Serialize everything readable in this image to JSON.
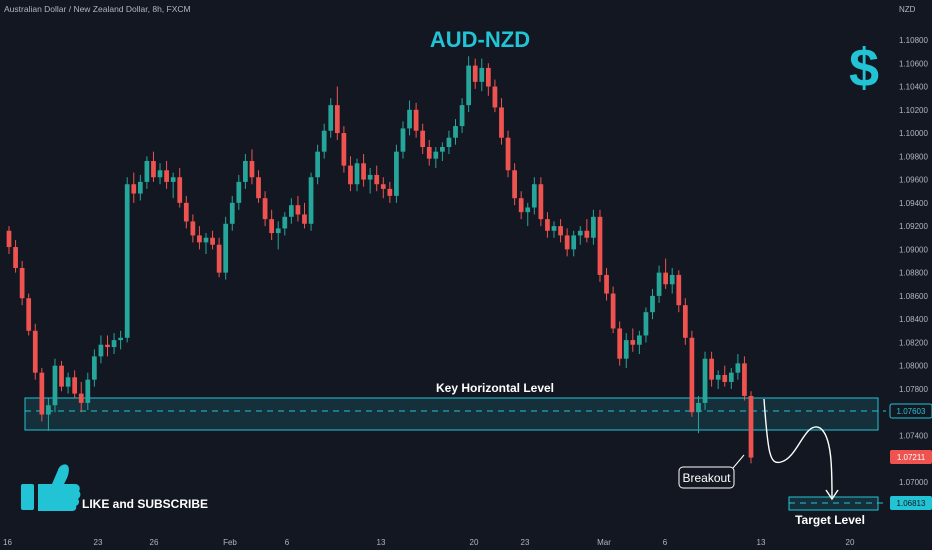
{
  "header": {
    "symbol_description": "Australian Dollar / New Zealand Dollar, 8h, FXCM",
    "currency": "NZD"
  },
  "colors": {
    "background": "#131722",
    "bullish": "#26a69a",
    "bearish": "#ef5350",
    "accent": "#22c3d4",
    "axis_text": "#b2b5be",
    "annotation": "#ffffff"
  },
  "icons": {
    "currency_icon": "dollar-sign-icon",
    "like_icon": "thumbs-up-icon"
  },
  "chart_data": {
    "type": "candlestick",
    "title": "AUD-NZD",
    "ylim": [
      1.066,
      1.082
    ],
    "y_ticks": [
      "1.10800",
      "1.10600",
      "1.10400",
      "1.10200",
      "1.10000",
      "1.09800",
      "1.09600",
      "1.09400",
      "1.09200",
      "1.09000",
      "1.08800",
      "1.08600",
      "1.08400",
      "1.08200",
      "1.08000",
      "1.07800",
      "1.07400",
      "1.07000"
    ],
    "x_ticks": [
      "16",
      "23",
      "26",
      "Feb",
      "6",
      "13",
      "20",
      "23",
      "Mar",
      "6",
      "13",
      "20"
    ],
    "price_labels": [
      {
        "value": "1.07603",
        "color": "accent"
      },
      {
        "value": "1.07211",
        "color": "bearish"
      },
      {
        "value": "1.06813",
        "color": "accent"
      }
    ],
    "candles": [
      {
        "o": 1.0916,
        "h": 1.092,
        "l": 1.0896,
        "c": 1.0902
      },
      {
        "o": 1.0902,
        "h": 1.0908,
        "l": 1.088,
        "c": 1.0884
      },
      {
        "o": 1.0884,
        "h": 1.089,
        "l": 1.0852,
        "c": 1.0858
      },
      {
        "o": 1.0858,
        "h": 1.0862,
        "l": 1.0826,
        "c": 1.083
      },
      {
        "o": 1.083,
        "h": 1.0836,
        "l": 1.0788,
        "c": 1.0794
      },
      {
        "o": 1.0794,
        "h": 1.0798,
        "l": 1.0752,
        "c": 1.0758
      },
      {
        "o": 1.0758,
        "h": 1.0772,
        "l": 1.0744,
        "c": 1.0766
      },
      {
        "o": 1.0766,
        "h": 1.0806,
        "l": 1.076,
        "c": 1.08
      },
      {
        "o": 1.08,
        "h": 1.0804,
        "l": 1.0778,
        "c": 1.0782
      },
      {
        "o": 1.0782,
        "h": 1.0794,
        "l": 1.0776,
        "c": 1.079
      },
      {
        "o": 1.079,
        "h": 1.0796,
        "l": 1.0772,
        "c": 1.0776
      },
      {
        "o": 1.0776,
        "h": 1.0786,
        "l": 1.076,
        "c": 1.0768
      },
      {
        "o": 1.0768,
        "h": 1.0794,
        "l": 1.0762,
        "c": 1.0788
      },
      {
        "o": 1.0788,
        "h": 1.0814,
        "l": 1.0782,
        "c": 1.0808
      },
      {
        "o": 1.0808,
        "h": 1.0826,
        "l": 1.0802,
        "c": 1.0818
      },
      {
        "o": 1.0818,
        "h": 1.0826,
        "l": 1.0808,
        "c": 1.0816
      },
      {
        "o": 1.0816,
        "h": 1.0828,
        "l": 1.081,
        "c": 1.0822
      },
      {
        "o": 1.0822,
        "h": 1.083,
        "l": 1.0814,
        "c": 1.0824
      },
      {
        "o": 1.0824,
        "h": 1.0962,
        "l": 1.082,
        "c": 1.0956
      },
      {
        "o": 1.0956,
        "h": 1.0966,
        "l": 1.094,
        "c": 1.0948
      },
      {
        "o": 1.0948,
        "h": 1.0964,
        "l": 1.0942,
        "c": 1.0958
      },
      {
        "o": 1.0958,
        "h": 1.098,
        "l": 1.0952,
        "c": 1.0976
      },
      {
        "o": 1.0976,
        "h": 1.0984,
        "l": 1.0958,
        "c": 1.0962
      },
      {
        "o": 1.0962,
        "h": 1.0974,
        "l": 1.0956,
        "c": 1.0968
      },
      {
        "o": 1.0968,
        "h": 1.0976,
        "l": 1.0952,
        "c": 1.0958
      },
      {
        "o": 1.0958,
        "h": 1.0966,
        "l": 1.0944,
        "c": 1.0962
      },
      {
        "o": 1.0962,
        "h": 1.097,
        "l": 1.0936,
        "c": 1.094
      },
      {
        "o": 1.094,
        "h": 1.0946,
        "l": 1.0918,
        "c": 1.0924
      },
      {
        "o": 1.0924,
        "h": 1.093,
        "l": 1.0906,
        "c": 1.0912
      },
      {
        "o": 1.0912,
        "h": 1.092,
        "l": 1.09,
        "c": 1.0906
      },
      {
        "o": 1.0906,
        "h": 1.0914,
        "l": 1.0896,
        "c": 1.091
      },
      {
        "o": 1.091,
        "h": 1.0916,
        "l": 1.09,
        "c": 1.0904
      },
      {
        "o": 1.0904,
        "h": 1.091,
        "l": 1.0876,
        "c": 1.088
      },
      {
        "o": 1.088,
        "h": 1.0928,
        "l": 1.0874,
        "c": 1.0922
      },
      {
        "o": 1.0922,
        "h": 1.0946,
        "l": 1.0916,
        "c": 1.094
      },
      {
        "o": 1.094,
        "h": 1.0964,
        "l": 1.0934,
        "c": 1.0958
      },
      {
        "o": 1.0958,
        "h": 1.0982,
        "l": 1.0952,
        "c": 1.0976
      },
      {
        "o": 1.0976,
        "h": 1.0986,
        "l": 1.0956,
        "c": 1.0962
      },
      {
        "o": 1.0962,
        "h": 1.0968,
        "l": 1.094,
        "c": 1.0944
      },
      {
        "o": 1.0944,
        "h": 1.095,
        "l": 1.092,
        "c": 1.0926
      },
      {
        "o": 1.0926,
        "h": 1.0934,
        "l": 1.0908,
        "c": 1.0914
      },
      {
        "o": 1.0914,
        "h": 1.0924,
        "l": 1.09,
        "c": 1.0918
      },
      {
        "o": 1.0918,
        "h": 1.0932,
        "l": 1.0912,
        "c": 1.0928
      },
      {
        "o": 1.0928,
        "h": 1.0944,
        "l": 1.0922,
        "c": 1.0938
      },
      {
        "o": 1.0938,
        "h": 1.0946,
        "l": 1.0924,
        "c": 1.093
      },
      {
        "o": 1.093,
        "h": 1.094,
        "l": 1.0918,
        "c": 1.0922
      },
      {
        "o": 1.0922,
        "h": 1.0966,
        "l": 1.0916,
        "c": 1.0962
      },
      {
        "o": 1.0962,
        "h": 1.099,
        "l": 1.0956,
        "c": 1.0984
      },
      {
        "o": 1.0984,
        "h": 1.1008,
        "l": 1.0978,
        "c": 1.1002
      },
      {
        "o": 1.1002,
        "h": 1.103,
        "l": 1.0996,
        "c": 1.1024
      },
      {
        "o": 1.1024,
        "h": 1.104,
        "l": 1.0994,
        "c": 1.1
      },
      {
        "o": 1.1,
        "h": 1.1006,
        "l": 1.0966,
        "c": 1.0972
      },
      {
        "o": 1.0972,
        "h": 1.098,
        "l": 1.095,
        "c": 1.0956
      },
      {
        "o": 1.0956,
        "h": 1.0978,
        "l": 1.095,
        "c": 1.0974
      },
      {
        "o": 1.0974,
        "h": 1.0982,
        "l": 1.0954,
        "c": 1.096
      },
      {
        "o": 1.096,
        "h": 1.097,
        "l": 1.0948,
        "c": 1.0964
      },
      {
        "o": 1.0964,
        "h": 1.0972,
        "l": 1.095,
        "c": 1.0956
      },
      {
        "o": 1.0956,
        "h": 1.0962,
        "l": 1.0944,
        "c": 1.0952
      },
      {
        "o": 1.0952,
        "h": 1.0958,
        "l": 1.094,
        "c": 1.0946
      },
      {
        "o": 1.0946,
        "h": 1.099,
        "l": 1.094,
        "c": 1.0984
      },
      {
        "o": 1.0984,
        "h": 1.101,
        "l": 1.0978,
        "c": 1.1004
      },
      {
        "o": 1.1004,
        "h": 1.1028,
        "l": 1.0998,
        "c": 1.102
      },
      {
        "o": 1.102,
        "h": 1.1026,
        "l": 1.0996,
        "c": 1.1002
      },
      {
        "o": 1.1002,
        "h": 1.1008,
        "l": 1.0982,
        "c": 1.0988
      },
      {
        "o": 1.0988,
        "h": 1.0994,
        "l": 1.0972,
        "c": 1.0978
      },
      {
        "o": 1.0978,
        "h": 1.0988,
        "l": 1.097,
        "c": 1.0984
      },
      {
        "o": 1.0984,
        "h": 1.0992,
        "l": 1.0976,
        "c": 1.0988
      },
      {
        "o": 1.0988,
        "h": 1.1002,
        "l": 1.0982,
        "c": 1.0996
      },
      {
        "o": 1.0996,
        "h": 1.1012,
        "l": 1.099,
        "c": 1.1006
      },
      {
        "o": 1.1006,
        "h": 1.103,
        "l": 1.1,
        "c": 1.1024
      },
      {
        "o": 1.1024,
        "h": 1.1066,
        "l": 1.1018,
        "c": 1.1058
      },
      {
        "o": 1.1058,
        "h": 1.1064,
        "l": 1.1038,
        "c": 1.1044
      },
      {
        "o": 1.1044,
        "h": 1.1064,
        "l": 1.1036,
        "c": 1.1056
      },
      {
        "o": 1.1056,
        "h": 1.106,
        "l": 1.1032,
        "c": 1.104
      },
      {
        "o": 1.104,
        "h": 1.1046,
        "l": 1.1018,
        "c": 1.1022
      },
      {
        "o": 1.1022,
        "h": 1.103,
        "l": 1.099,
        "c": 1.0996
      },
      {
        "o": 1.0996,
        "h": 1.1002,
        "l": 1.0962,
        "c": 1.0968
      },
      {
        "o": 1.0968,
        "h": 1.0974,
        "l": 1.0938,
        "c": 1.0944
      },
      {
        "o": 1.0944,
        "h": 1.095,
        "l": 1.0926,
        "c": 1.0932
      },
      {
        "o": 1.0932,
        "h": 1.094,
        "l": 1.092,
        "c": 1.0936
      },
      {
        "o": 1.0936,
        "h": 1.0962,
        "l": 1.093,
        "c": 1.0956
      },
      {
        "o": 1.0956,
        "h": 1.0962,
        "l": 1.092,
        "c": 1.0926
      },
      {
        "o": 1.0926,
        "h": 1.0932,
        "l": 1.091,
        "c": 1.0916
      },
      {
        "o": 1.0916,
        "h": 1.0924,
        "l": 1.091,
        "c": 1.092
      },
      {
        "o": 1.092,
        "h": 1.0926,
        "l": 1.0906,
        "c": 1.0912
      },
      {
        "o": 1.0912,
        "h": 1.0918,
        "l": 1.0894,
        "c": 1.09
      },
      {
        "o": 1.09,
        "h": 1.0916,
        "l": 1.0894,
        "c": 1.0912
      },
      {
        "o": 1.0912,
        "h": 1.092,
        "l": 1.0904,
        "c": 1.0916
      },
      {
        "o": 1.0916,
        "h": 1.0926,
        "l": 1.0906,
        "c": 1.091
      },
      {
        "o": 1.091,
        "h": 1.0934,
        "l": 1.0904,
        "c": 1.0928
      },
      {
        "o": 1.0928,
        "h": 1.0934,
        "l": 1.0872,
        "c": 1.0878
      },
      {
        "o": 1.0878,
        "h": 1.0884,
        "l": 1.0856,
        "c": 1.0862
      },
      {
        "o": 1.0862,
        "h": 1.0868,
        "l": 1.0828,
        "c": 1.0832
      },
      {
        "o": 1.0832,
        "h": 1.0838,
        "l": 1.08,
        "c": 1.0806
      },
      {
        "o": 1.0806,
        "h": 1.0828,
        "l": 1.0798,
        "c": 1.0822
      },
      {
        "o": 1.0822,
        "h": 1.0832,
        "l": 1.0812,
        "c": 1.0818
      },
      {
        "o": 1.0818,
        "h": 1.083,
        "l": 1.081,
        "c": 1.0826
      },
      {
        "o": 1.0826,
        "h": 1.085,
        "l": 1.082,
        "c": 1.0846
      },
      {
        "o": 1.0846,
        "h": 1.0866,
        "l": 1.084,
        "c": 1.086
      },
      {
        "o": 1.086,
        "h": 1.0886,
        "l": 1.0854,
        "c": 1.088
      },
      {
        "o": 1.088,
        "h": 1.0892,
        "l": 1.0866,
        "c": 1.087
      },
      {
        "o": 1.087,
        "h": 1.0884,
        "l": 1.0862,
        "c": 1.0878
      },
      {
        "o": 1.0878,
        "h": 1.0882,
        "l": 1.0846,
        "c": 1.0852
      },
      {
        "o": 1.0852,
        "h": 1.0858,
        "l": 1.0818,
        "c": 1.0824
      },
      {
        "o": 1.0824,
        "h": 1.083,
        "l": 1.0756,
        "c": 1.076
      },
      {
        "o": 1.076,
        "h": 1.0774,
        "l": 1.0742,
        "c": 1.0768
      },
      {
        "o": 1.0768,
        "h": 1.0812,
        "l": 1.0762,
        "c": 1.0806
      },
      {
        "o": 1.0806,
        "h": 1.0812,
        "l": 1.0782,
        "c": 1.0788
      },
      {
        "o": 1.0788,
        "h": 1.0796,
        "l": 1.078,
        "c": 1.0792
      },
      {
        "o": 1.0792,
        "h": 1.08,
        "l": 1.0782,
        "c": 1.0786
      },
      {
        "o": 1.0786,
        "h": 1.0798,
        "l": 1.078,
        "c": 1.0794
      },
      {
        "o": 1.0794,
        "h": 1.081,
        "l": 1.0788,
        "c": 1.0802
      },
      {
        "o": 1.0802,
        "h": 1.0808,
        "l": 1.077,
        "c": 1.0774
      },
      {
        "o": 1.0774,
        "h": 1.0778,
        "l": 1.0716,
        "c": 1.0721
      }
    ],
    "annotations": [
      {
        "text": "Key Horizontal Level",
        "level": "1.07603"
      },
      {
        "text": "Breakout"
      },
      {
        "text": "Target Level",
        "level": "1.06813"
      }
    ],
    "grid": false
  },
  "footer": {
    "cta_text": "LIKE and SUBSCRIBE"
  }
}
